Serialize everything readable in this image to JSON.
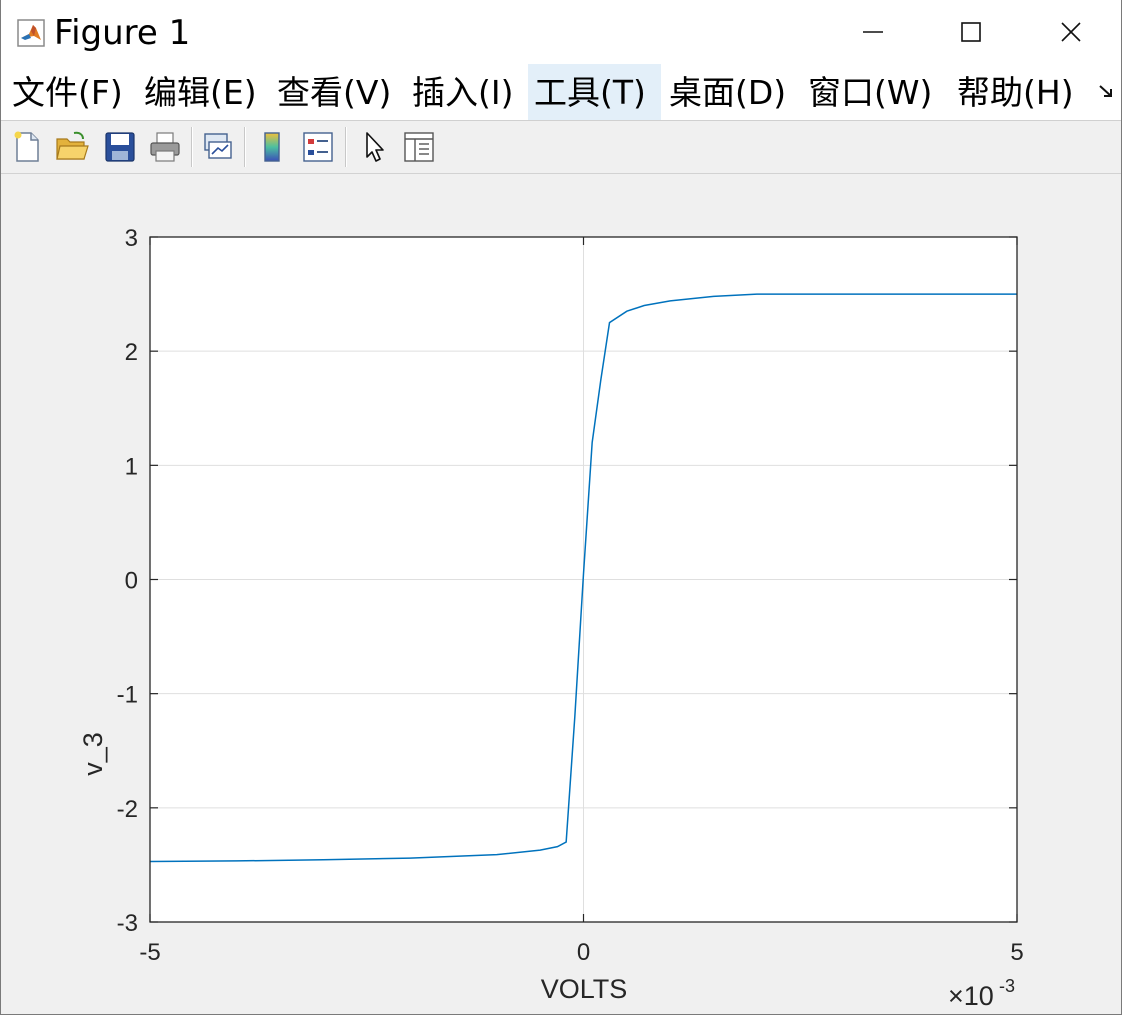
{
  "window": {
    "title": "Figure 1",
    "controls": {
      "minimize": "minimize",
      "maximize": "maximize",
      "close": "close"
    }
  },
  "menu": [
    {
      "label": "文件(F)",
      "active": false
    },
    {
      "label": "编辑(E)",
      "active": false
    },
    {
      "label": "查看(V)",
      "active": false
    },
    {
      "label": "插入(I)",
      "active": false
    },
    {
      "label": "工具(T)",
      "active": true
    },
    {
      "label": "桌面(D)",
      "active": false
    },
    {
      "label": "窗口(W)",
      "active": false
    },
    {
      "label": "帮助(H)",
      "active": false
    }
  ],
  "toolbar": [
    {
      "name": "new-figure-icon"
    },
    {
      "name": "open-file-icon"
    },
    {
      "name": "save-icon"
    },
    {
      "name": "print-icon"
    },
    {
      "name": "link-plot-icon"
    },
    {
      "name": "colorbar-icon"
    },
    {
      "name": "legend-icon"
    },
    {
      "name": "edit-plot-cursor-icon"
    },
    {
      "name": "property-inspector-icon"
    }
  ],
  "chart_data": {
    "type": "line",
    "xlabel": "VOLTS",
    "ylabel": "v_3",
    "x_exponent_label": "×10",
    "x_exponent_power": "-3",
    "xlim": [
      -0.005,
      0.005
    ],
    "ylim": [
      -3,
      3
    ],
    "xtick_labels": [
      "-5",
      "0",
      "5"
    ],
    "xticks": [
      -0.005,
      0,
      0.005
    ],
    "ytick_labels": [
      "3",
      "2",
      "1",
      "0",
      "-1",
      "-2",
      "-3"
    ],
    "yticks": [
      3,
      2,
      1,
      0,
      -1,
      -2,
      -3
    ],
    "grid": true,
    "line_color": "#0072BD",
    "series": [
      {
        "x": [
          -0.005,
          -0.004,
          -0.003,
          -0.002,
          -0.001,
          -0.0005,
          -0.0003,
          -0.0002,
          -0.0001,
          0,
          0.0001,
          0.0002,
          0.0003,
          0.0005,
          0.0007,
          0.001,
          0.0015,
          0.002,
          0.003,
          0.004,
          0.005
        ],
        "values": [
          -2.47,
          -2.465,
          -2.455,
          -2.44,
          -2.41,
          -2.37,
          -2.34,
          -2.3,
          -1.2,
          0.05,
          1.2,
          1.75,
          2.25,
          2.35,
          2.4,
          2.44,
          2.48,
          2.5,
          2.5,
          2.5,
          2.5
        ]
      }
    ]
  }
}
